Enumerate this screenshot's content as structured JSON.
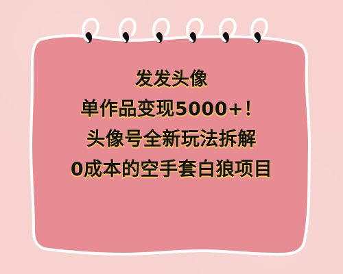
{
  "colors": {
    "background": "#f7d2cf",
    "note": "#e88c94",
    "note_border": "#ffffff",
    "ring": "#ffffff",
    "ring_hole": "#111111",
    "text": "#111111",
    "text_shadow": "#f6c15d"
  },
  "icons": {
    "spiral_rings": "spiral-ring-icon"
  },
  "headline": {
    "lines": [
      "发发头像",
      "单作品变现5000+！",
      "头像号全新玩法拆解",
      "0成本的空手套白狼项目"
    ]
  }
}
